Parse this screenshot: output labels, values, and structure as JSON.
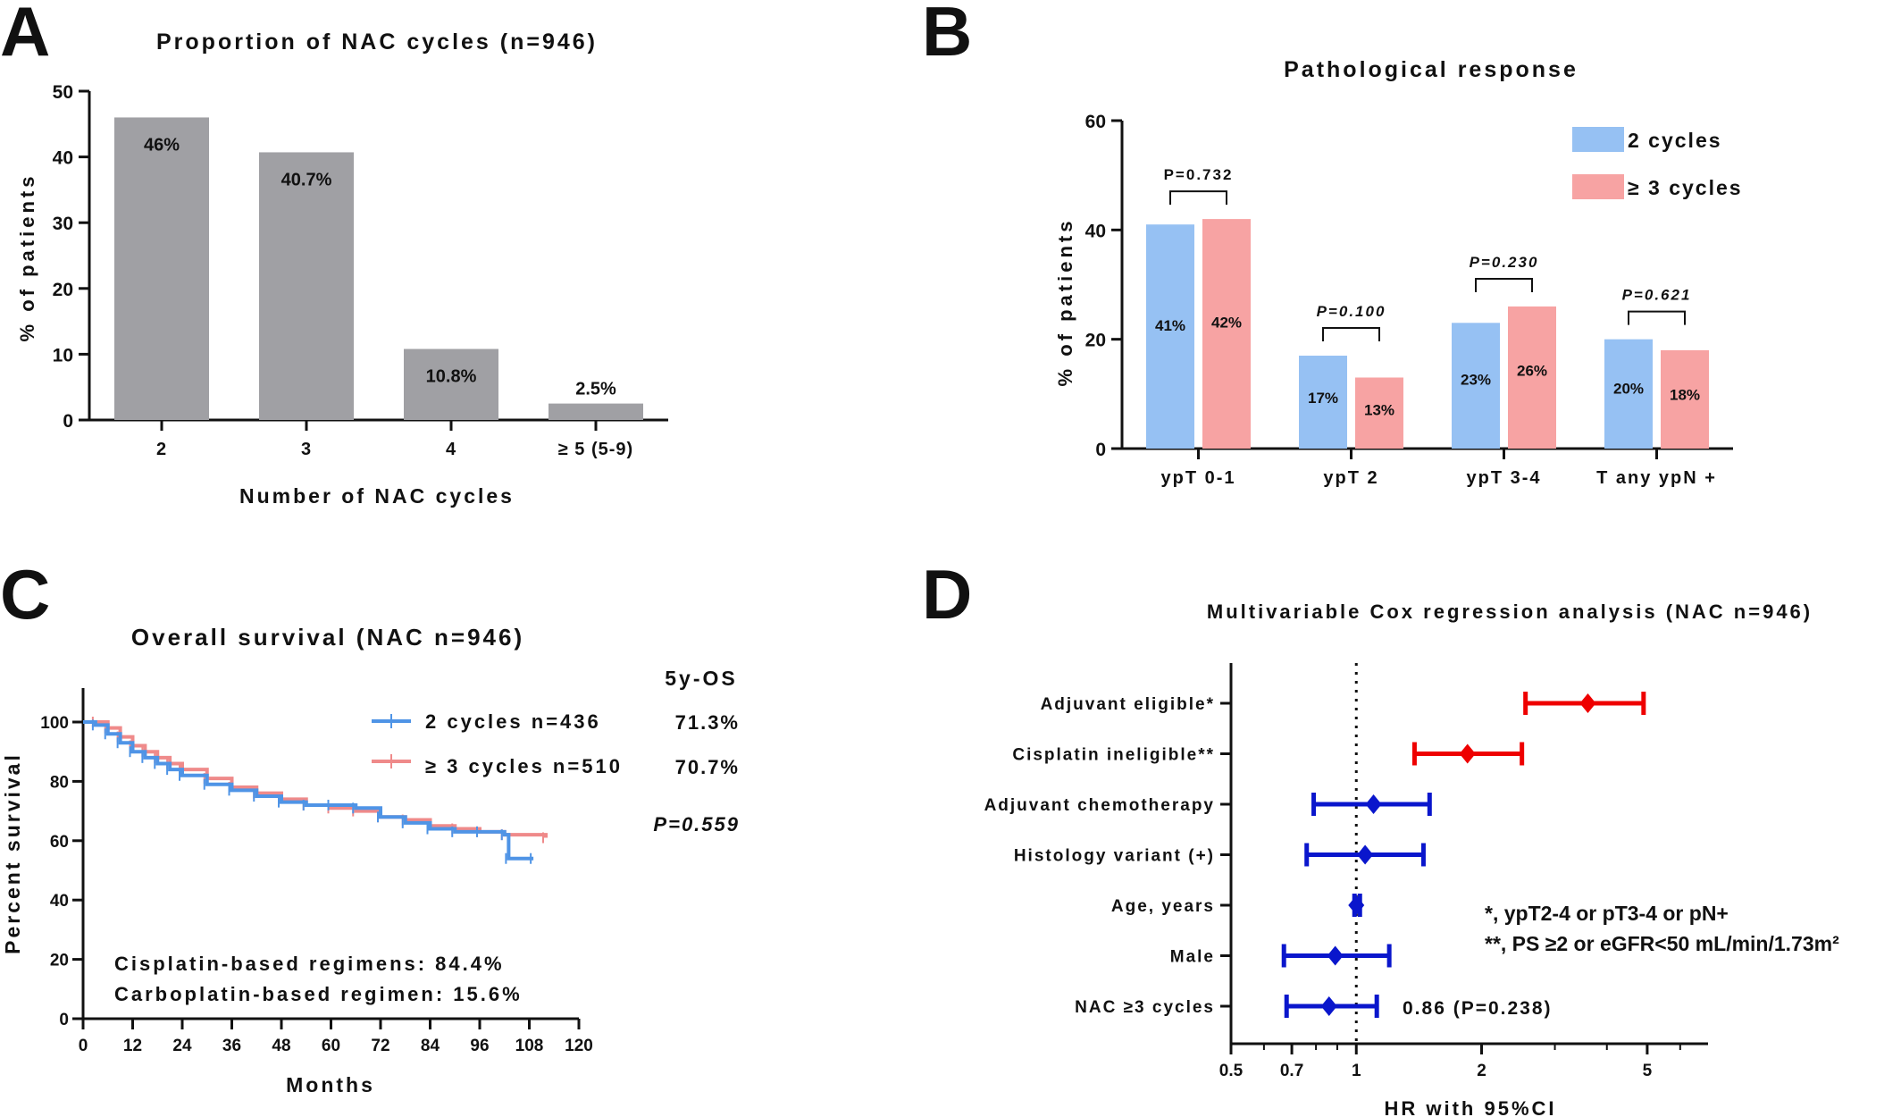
{
  "chart_data": [
    {
      "panel": "A",
      "type": "bar",
      "title": "Proportion of NAC cycles (n=946)",
      "xlabel": "Number of NAC cycles",
      "ylabel": "% of patients",
      "ylim": [
        0,
        50
      ],
      "yticks": [
        "0",
        "10",
        "20",
        "30",
        "40",
        "50"
      ],
      "categories": [
        "2",
        "3",
        "4",
        "≥ 5 (5-9)"
      ],
      "values": [
        46,
        40.7,
        10.8,
        2.5
      ],
      "data_labels": [
        "46%",
        "40.7%",
        "10.8%",
        "2.5%"
      ],
      "color": "#a0a0a4"
    },
    {
      "panel": "B",
      "type": "bar",
      "title": "Pathological response",
      "ylabel": "% of patients",
      "ylim": [
        0,
        60
      ],
      "yticks": [
        "0",
        "20",
        "40",
        "60"
      ],
      "categories": [
        "ypT 0-1",
        "ypT 2",
        "ypT 3-4",
        "T any ypN +"
      ],
      "series": [
        {
          "name": "2 cycles",
          "color": "#96c1f3",
          "values": [
            41,
            17,
            23,
            20
          ],
          "labels": [
            "41%",
            "17%",
            "23%",
            "20%"
          ]
        },
        {
          "name": "≥ 3 cycles",
          "color": "#f7a3a3",
          "values": [
            42,
            13,
            26,
            18
          ],
          "labels": [
            "42%",
            "13%",
            "26%",
            "18%"
          ]
        }
      ],
      "pvalues": [
        "P=0.732",
        "P=0.100",
        "P=0.230",
        "P=0.621"
      ],
      "legend": "top-right"
    },
    {
      "panel": "C",
      "type": "line",
      "title": "Overall survival (NAC n=946)",
      "xlabel": "Months",
      "ylabel": "Percent survival",
      "xlim": [
        0,
        120
      ],
      "ylim": [
        0,
        100
      ],
      "xticks": [
        "0",
        "12",
        "24",
        "36",
        "48",
        "60",
        "72",
        "84",
        "96",
        "108",
        "120"
      ],
      "yticks": [
        "0",
        "20",
        "40",
        "60",
        "80",
        "100"
      ],
      "os_header": "5y-OS",
      "series": [
        {
          "name": "2 cycles n=436",
          "os": "71.3%",
          "color": "#4f94e6",
          "x": [
            0,
            3,
            6,
            9,
            12,
            15,
            18,
            21,
            24,
            30,
            36,
            42,
            48,
            54,
            60,
            66,
            72,
            78,
            84,
            90,
            96,
            102,
            103,
            109
          ],
          "y": [
            100,
            99,
            96,
            93,
            90,
            88,
            86,
            84,
            82,
            79,
            77,
            75,
            73,
            72,
            72,
            71,
            68,
            66,
            64,
            63,
            63,
            62,
            54,
            54
          ]
        },
        {
          "name": "≥ 3 cycles n=510",
          "os": "70.7%",
          "color": "#ef8a8a",
          "x": [
            0,
            3,
            6,
            9,
            12,
            15,
            18,
            21,
            24,
            30,
            36,
            42,
            48,
            54,
            60,
            66,
            72,
            78,
            84,
            90,
            96,
            102,
            112
          ],
          "y": [
            100,
            100,
            98,
            95,
            92,
            90,
            88,
            86,
            84,
            81,
            78,
            76,
            74,
            72,
            71,
            70,
            68,
            67,
            65,
            64,
            63,
            62,
            61
          ]
        }
      ],
      "pvalue": "P=0.559",
      "annotations": [
        "Cisplatin-based regimens: 84.4%",
        "Carboplatin-based regimen: 15.6%"
      ]
    },
    {
      "panel": "D",
      "type": "scatter",
      "title": "Multivariable Cox regression analysis (NAC n=946)",
      "xlabel": "HR with 95%CI",
      "xscale": "log",
      "xlim": [
        0.5,
        7
      ],
      "xticks": [
        0.5,
        0.7,
        1,
        2,
        5
      ],
      "xtick_labels": [
        "0.5",
        "0.7",
        "1",
        "2",
        "5"
      ],
      "reference_line": 1,
      "rows": [
        {
          "label": "Adjuvant eligible*",
          "hr": 3.6,
          "lo": 2.55,
          "hi": 4.9,
          "color": "#ee0000"
        },
        {
          "label": "Cisplatin ineligible**",
          "hr": 1.85,
          "lo": 1.38,
          "hi": 2.5,
          "color": "#ee0000"
        },
        {
          "label": "Adjuvant chemotherapy",
          "hr": 1.1,
          "lo": 0.79,
          "hi": 1.5,
          "color": "#0a16cc"
        },
        {
          "label": "Histology variant (+)",
          "hr": 1.05,
          "lo": 0.76,
          "hi": 1.45,
          "color": "#0a16cc"
        },
        {
          "label": "Age, years",
          "hr": 1.0,
          "lo": 0.99,
          "hi": 1.02,
          "color": "#0a16cc"
        },
        {
          "label": "Male",
          "hr": 0.89,
          "lo": 0.67,
          "hi": 1.2,
          "color": "#0a16cc"
        },
        {
          "label": "NAC ≥3 cycles",
          "hr": 0.86,
          "lo": 0.68,
          "hi": 1.12,
          "color": "#0a16cc"
        }
      ],
      "nac_estimate": "0.86 (P=0.238)",
      "notes": [
        "*, ypT2-4 or pT3-4 or pN+",
        "**, PS ≥2 or eGFR<50 mL/min/1.73m²"
      ]
    }
  ],
  "panel_letters": [
    "A",
    "B",
    "C",
    "D"
  ]
}
